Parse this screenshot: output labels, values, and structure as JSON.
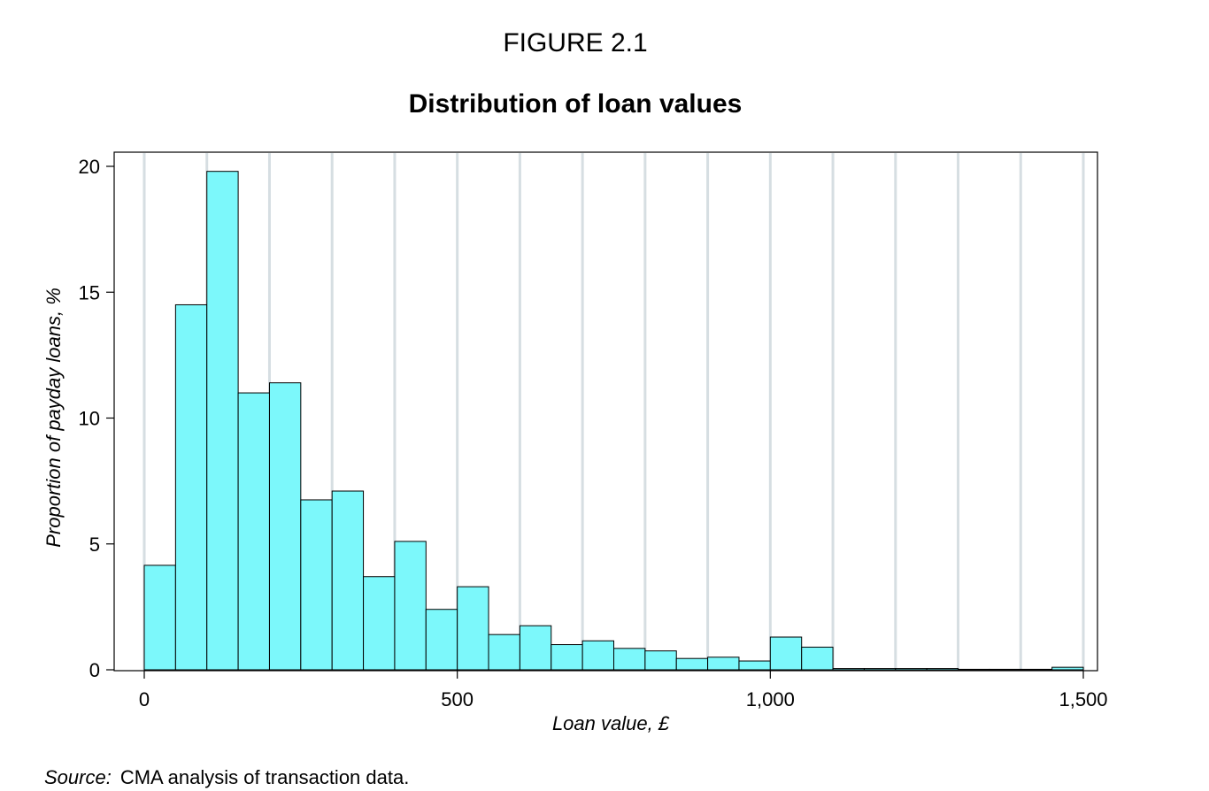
{
  "figure_label": "FIGURE 2.1",
  "source": {
    "label": "Source:",
    "text": "CMA analysis of transaction data."
  },
  "colors": {
    "bar_fill": "#7CF8FB",
    "bar_stroke": "#000000",
    "grid": "#D6DEE2"
  },
  "chart_data": {
    "type": "bar",
    "title": "Distribution of loan values",
    "xlabel": "Loan value, £",
    "ylabel": "Proportion of payday loans, %",
    "xlim": [
      0,
      1500
    ],
    "ylim": [
      0,
      20
    ],
    "x_ticks": [
      0,
      500,
      1000,
      1500
    ],
    "x_tick_labels": [
      "0",
      "500",
      "1,000",
      "1,500"
    ],
    "y_ticks": [
      0,
      5,
      10,
      15,
      20
    ],
    "y_tick_labels": [
      "0",
      "5",
      "10",
      "15",
      "20"
    ],
    "grid": "vertical every 100",
    "bin_width": 50,
    "bin_starts": [
      0,
      50,
      100,
      150,
      200,
      250,
      300,
      350,
      400,
      450,
      500,
      550,
      600,
      650,
      700,
      750,
      800,
      850,
      900,
      950,
      1000,
      1050,
      1100,
      1150,
      1200,
      1250,
      1300,
      1350,
      1400,
      1450
    ],
    "values": [
      4.15,
      14.5,
      19.8,
      11.0,
      11.4,
      6.75,
      7.1,
      3.7,
      5.1,
      2.4,
      3.3,
      1.4,
      1.75,
      1.0,
      1.15,
      0.85,
      0.75,
      0.45,
      0.5,
      0.35,
      1.3,
      0.9,
      0.05,
      0.05,
      0.05,
      0.05,
      0.02,
      0.02,
      0.02,
      0.1
    ]
  }
}
